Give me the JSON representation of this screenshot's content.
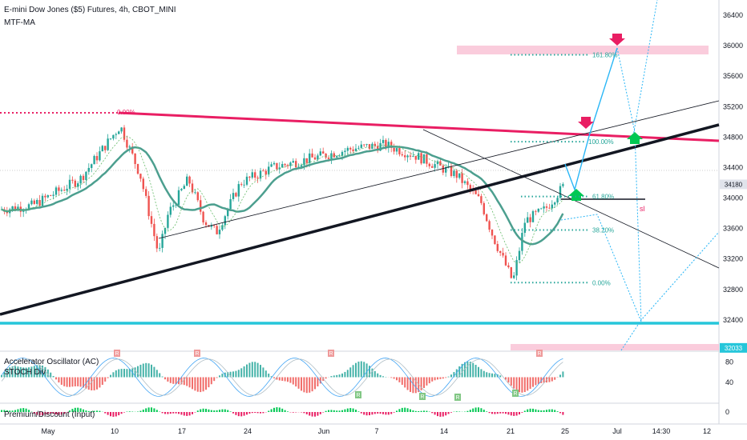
{
  "header": {
    "title": "E-mini Dow Jones ($5) Futures, 4h, CBOT_MINI",
    "indicator": "MTF-MA"
  },
  "colors": {
    "up": "#26a69a",
    "down": "#ef5350",
    "resistance": "#e91e63",
    "support": "#000000",
    "level_line": "#26c6da",
    "ma": "#4caf50",
    "fib": "#26a69a",
    "projection": "#29b6f6"
  },
  "chart_data": {
    "type": "candlestick",
    "symbol": "E-mini Dow Jones ($5) Futures",
    "interval": "4h",
    "exchange": "CBOT_MINI",
    "ylim": [
      32000,
      36600
    ],
    "y_ticks": [
      36400,
      36000,
      35600,
      35200,
      34800,
      34400,
      34000,
      33600,
      33200,
      32800,
      32400
    ],
    "x_ticks": [
      "May",
      "10",
      "17",
      "24",
      "Jun",
      "7",
      "14",
      "21",
      "25",
      "Jul",
      "14:30",
      "12"
    ],
    "current_price": 34180,
    "level_price": 32033,
    "close_path": [
      {
        "t": "May",
        "p": 33850
      },
      {
        "t": "5",
        "p": 33900
      },
      {
        "t": "7",
        "p": 34250
      },
      {
        "t": "10",
        "p": 34950
      },
      {
        "t": "12",
        "p": 34300
      },
      {
        "t": "13",
        "p": 33250
      },
      {
        "t": "14",
        "p": 33800
      },
      {
        "t": "17",
        "p": 34250
      },
      {
        "t": "20",
        "p": 33700
      },
      {
        "t": "21",
        "p": 33550
      },
      {
        "t": "24",
        "p": 34200
      },
      {
        "t": "27",
        "p": 34400
      },
      {
        "t": "Jun",
        "p": 34550
      },
      {
        "t": "3",
        "p": 34650
      },
      {
        "t": "7",
        "p": 34700
      },
      {
        "t": "10",
        "p": 34550
      },
      {
        "t": "14",
        "p": 34300
      },
      {
        "t": "16",
        "p": 33950
      },
      {
        "t": "18",
        "p": 33500
      },
      {
        "t": "19",
        "p": 32900
      },
      {
        "t": "21",
        "p": 33700
      },
      {
        "t": "23",
        "p": 33850
      },
      {
        "t": "25",
        "p": 34180
      }
    ],
    "fibonacci": [
      {
        "label": "161.80%",
        "price": 35880
      },
      {
        "label": "100.00%",
        "price": 34740
      },
      {
        "label": "61.80%",
        "price": 34020
      },
      {
        "label": "38.20%",
        "price": 33580
      },
      {
        "label": "0.00%",
        "price": 32890
      }
    ],
    "top_label": "0.00%",
    "annotations": [
      "sl"
    ],
    "sub_panes": [
      {
        "name": "Accelerator Oscillator (AC)",
        "y_ticks": [
          80,
          40
        ],
        "signal_labels": [
          "R",
          "R",
          "R",
          "R"
        ]
      },
      {
        "name": "STOCH Div",
        "signal_labels": [
          "R",
          "R",
          "R",
          "R"
        ]
      },
      {
        "name": "Premium/Discount (Input)",
        "y_ticks": [
          0
        ]
      }
    ]
  }
}
